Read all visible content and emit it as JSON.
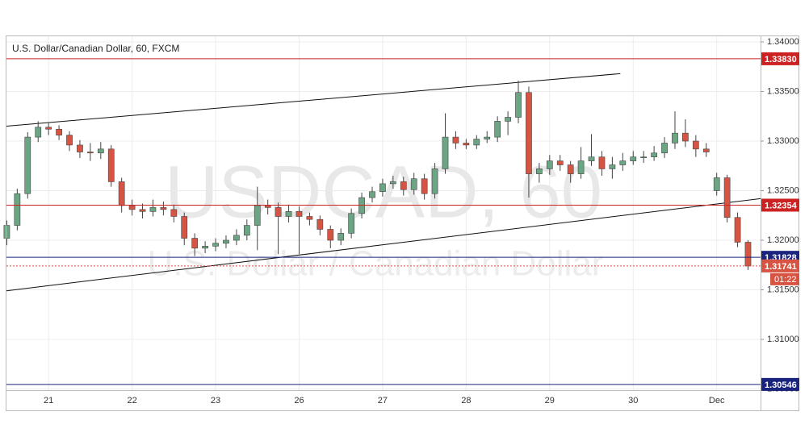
{
  "chart_data": {
    "type": "candlestick",
    "title": "U.S. Dollar/Canadian Dollar, 60, FXCM",
    "watermark": "USDCAD, 60",
    "watermark_subtitle": "U.S. Dollar / Canadian Dollar",
    "countdown": "01:22",
    "up_color": "#6ba583",
    "down_color": "#d75442",
    "x": [
      -12,
      -9,
      -6,
      -3,
      0,
      3,
      6,
      9,
      12,
      15,
      18,
      21,
      24,
      27,
      30,
      33,
      36,
      39,
      42,
      45,
      48,
      51,
      54,
      57,
      60,
      63,
      66,
      69,
      72,
      75,
      78,
      81,
      84,
      87,
      90,
      93,
      96,
      99,
      102,
      105,
      108,
      111,
      114,
      117,
      120,
      123,
      126,
      129,
      132,
      135,
      138,
      141,
      144,
      147,
      150,
      153,
      156,
      159,
      162,
      165,
      168,
      171,
      174,
      177,
      180,
      183,
      186,
      189,
      192,
      195,
      198,
      201
    ],
    "open": [
      1.3202,
      1.3215,
      1.3247,
      1.3304,
      1.3314,
      1.3312,
      1.3306,
      1.3296,
      1.3289,
      1.3288,
      1.3292,
      1.3259,
      1.3235,
      1.3231,
      1.3229,
      1.3233,
      1.3231,
      1.3224,
      1.3202,
      1.3192,
      1.3194,
      1.3197,
      1.32,
      1.3205,
      1.3215,
      1.3235,
      1.3233,
      1.3224,
      1.3229,
      1.3224,
      1.3221,
      1.3211,
      1.32,
      1.3207,
      1.3227,
      1.3243,
      1.3249,
      1.3257,
      1.3259,
      1.3251,
      1.3262,
      1.3247,
      1.3272,
      1.3304,
      1.3298,
      1.3296,
      1.3302,
      1.3304,
      1.332,
      1.3324,
      1.3349,
      1.3267,
      1.3272,
      1.328,
      1.3276,
      1.3267,
      1.328,
      1.3284,
      1.3272,
      1.3276,
      1.328,
      1.3284,
      1.3284,
      1.3288,
      1.3298,
      1.3308,
      1.33,
      1.3292,
      1.325,
      1.3263,
      1.3223,
      1.3198
    ],
    "high": [
      1.322,
      1.3252,
      1.3309,
      1.332,
      1.3318,
      1.3316,
      1.331,
      1.3301,
      1.3298,
      1.3299,
      1.3296,
      1.3263,
      1.3241,
      1.3237,
      1.3241,
      1.3239,
      1.3236,
      1.3228,
      1.3207,
      1.3199,
      1.3202,
      1.3205,
      1.3211,
      1.3221,
      1.3254,
      1.3241,
      1.3238,
      1.3236,
      1.3234,
      1.3228,
      1.3225,
      1.3215,
      1.3212,
      1.3232,
      1.3248,
      1.3254,
      1.3262,
      1.3265,
      1.3264,
      1.3268,
      1.3267,
      1.3278,
      1.3328,
      1.331,
      1.3302,
      1.3306,
      1.331,
      1.3325,
      1.333,
      1.3361,
      1.3355,
      1.3278,
      1.3286,
      1.3286,
      1.328,
      1.3294,
      1.3307,
      1.329,
      1.3284,
      1.3288,
      1.329,
      1.329,
      1.3295,
      1.3304,
      1.333,
      1.3322,
      1.3306,
      1.3298,
      1.3268,
      1.3266,
      1.3228,
      1.32
    ],
    "low": [
      1.3195,
      1.321,
      1.3242,
      1.3299,
      1.3306,
      1.3301,
      1.329,
      1.3283,
      1.328,
      1.3282,
      1.3254,
      1.3228,
      1.3225,
      1.3222,
      1.3224,
      1.3225,
      1.3218,
      1.3195,
      1.3184,
      1.3187,
      1.3189,
      1.3192,
      1.3195,
      1.32,
      1.319,
      1.3226,
      1.3186,
      1.3218,
      1.3186,
      1.3215,
      1.3205,
      1.3192,
      1.3195,
      1.3202,
      1.3222,
      1.3238,
      1.3244,
      1.3252,
      1.3245,
      1.3246,
      1.3241,
      1.3242,
      1.3267,
      1.3292,
      1.3292,
      1.3292,
      1.3298,
      1.3299,
      1.3306,
      1.3318,
      1.3243,
      1.3258,
      1.3266,
      1.327,
      1.3258,
      1.3262,
      1.3275,
      1.3265,
      1.3262,
      1.327,
      1.3276,
      1.3278,
      1.328,
      1.3283,
      1.3292,
      1.3294,
      1.3284,
      1.3284,
      1.3245,
      1.3218,
      1.3193,
      1.317
    ],
    "close": [
      1.3215,
      1.3247,
      1.3304,
      1.3314,
      1.3312,
      1.3306,
      1.3296,
      1.3289,
      1.3288,
      1.3292,
      1.3259,
      1.3235,
      1.3231,
      1.3229,
      1.3233,
      1.3231,
      1.3224,
      1.3202,
      1.3192,
      1.3194,
      1.3197,
      1.32,
      1.3205,
      1.3215,
      1.3235,
      1.3233,
      1.3224,
      1.3229,
      1.3224,
      1.3221,
      1.3211,
      1.32,
      1.3207,
      1.3227,
      1.3243,
      1.3249,
      1.3257,
      1.3259,
      1.3251,
      1.3262,
      1.3247,
      1.3272,
      1.3304,
      1.3298,
      1.3296,
      1.3302,
      1.3304,
      1.332,
      1.3324,
      1.3349,
      1.3267,
      1.3272,
      1.328,
      1.3276,
      1.3267,
      1.328,
      1.3284,
      1.3272,
      1.3276,
      1.328,
      1.3284,
      1.3284,
      1.3288,
      1.3298,
      1.3308,
      1.33,
      1.3292,
      1.3289,
      1.3263,
      1.3223,
      1.3198,
      1.3174
    ],
    "xlim": [
      -12.1,
      204.6
    ],
    "xticks": [
      {
        "value": 0,
        "label": "21"
      },
      {
        "value": 24,
        "label": "22"
      },
      {
        "value": 48,
        "label": "23"
      },
      {
        "value": 72,
        "label": "26"
      },
      {
        "value": 96,
        "label": "27"
      },
      {
        "value": 120,
        "label": "28"
      },
      {
        "value": 144,
        "label": "29"
      },
      {
        "value": 168,
        "label": "30"
      },
      {
        "value": 192,
        "label": "Dec"
      }
    ],
    "ylim": [
      1.30488,
      1.34065
    ],
    "yticks": [
      {
        "value": 1.34,
        "label": "1.34000"
      },
      {
        "value": 1.335,
        "label": "1.33500"
      },
      {
        "value": 1.33,
        "label": "1.33000"
      },
      {
        "value": 1.325,
        "label": "1.32500"
      },
      {
        "value": 1.32,
        "label": "1.32000"
      },
      {
        "value": 1.315,
        "label": "1.31500"
      },
      {
        "value": 1.31,
        "label": "1.31000"
      },
      {
        "value": 1.305,
        "label": "1.30500"
      }
    ],
    "grid": true,
    "price_lines": [
      {
        "value": 1.3383,
        "label": "1.33830",
        "color": "#cc2222",
        "style": "solid"
      },
      {
        "value": 1.32354,
        "label": "1.32354",
        "color": "#cc2222",
        "style": "solid"
      },
      {
        "value": 1.31828,
        "label": "1.31828",
        "color": "#1a237e",
        "style": "solid"
      },
      {
        "value": 1.31741,
        "label": "1.31741",
        "color": "#d75442",
        "style": "dotted"
      },
      {
        "value": 1.30546,
        "label": "1.30546",
        "color": "#1a237e",
        "style": "solid"
      }
    ],
    "trendlines": [
      {
        "x": [
          -12.1,
          164.3
        ],
        "y": [
          1.3315,
          1.3368
        ]
      },
      {
        "x": [
          -12.1,
          204.6
        ],
        "y": [
          1.3149,
          1.3242
        ]
      }
    ]
  }
}
